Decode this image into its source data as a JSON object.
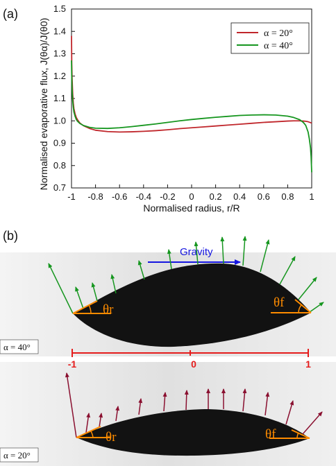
{
  "panel_a_label": "(a)",
  "panel_b_label": "(b)",
  "chart_data": {
    "type": "line",
    "xlabel": "Normalised radius, r/R",
    "ylabel": "Normalised evaporative flux, J(θα)/J(θ0)",
    "xlim": [
      -1,
      1
    ],
    "ylim": [
      0.7,
      1.5
    ],
    "x_ticks": [
      "-1",
      "-0.8",
      "-0.6",
      "-0.4",
      "-0.2",
      "0",
      "0.2",
      "0.4",
      "0.6",
      "0.8",
      "1"
    ],
    "y_ticks": [
      "0.7",
      "0.8",
      "0.9",
      "1.0",
      "1.1",
      "1.2",
      "1.3",
      "1.4",
      "1.5"
    ],
    "legend_position": "top-right",
    "grid": false,
    "series": [
      {
        "name": "α = 20°",
        "color": "#c0262b",
        "x": [
          -1.0,
          -0.998,
          -0.995,
          -0.99,
          -0.985,
          -0.98,
          -0.97,
          -0.96,
          -0.95,
          -0.93,
          -0.9,
          -0.85,
          -0.8,
          -0.7,
          -0.6,
          -0.5,
          -0.4,
          -0.3,
          -0.2,
          -0.1,
          0.0,
          0.1,
          0.2,
          0.3,
          0.4,
          0.5,
          0.6,
          0.7,
          0.8,
          0.85,
          0.9,
          0.93,
          0.95,
          0.97,
          0.98,
          0.99,
          0.995,
          1.0
        ],
        "y": [
          1.38,
          1.26,
          1.19,
          1.12,
          1.08,
          1.055,
          1.03,
          1.015,
          1.005,
          0.99,
          0.978,
          0.966,
          0.958,
          0.952,
          0.95,
          0.951,
          0.953,
          0.956,
          0.96,
          0.965,
          0.969,
          0.973,
          0.977,
          0.981,
          0.985,
          0.989,
          0.993,
          0.996,
          0.999,
          1.0,
          1.0,
          0.999,
          0.998,
          0.996,
          0.994,
          0.992,
          0.991,
          0.99
        ]
      },
      {
        "name": "α = 40°",
        "color": "#16961f",
        "x": [
          -1.0,
          -0.998,
          -0.995,
          -0.99,
          -0.985,
          -0.98,
          -0.97,
          -0.96,
          -0.95,
          -0.93,
          -0.9,
          -0.85,
          -0.8,
          -0.7,
          -0.6,
          -0.5,
          -0.4,
          -0.3,
          -0.2,
          -0.1,
          0.0,
          0.1,
          0.2,
          0.3,
          0.4,
          0.5,
          0.6,
          0.7,
          0.8,
          0.85,
          0.9,
          0.93,
          0.95,
          0.97,
          0.98,
          0.99,
          0.995,
          0.998,
          1.0
        ],
        "y": [
          1.27,
          1.2,
          1.14,
          1.09,
          1.06,
          1.04,
          1.02,
          1.006,
          0.998,
          0.988,
          0.979,
          0.971,
          0.967,
          0.966,
          0.969,
          0.974,
          0.98,
          0.986,
          0.993,
          1.0,
          1.006,
          1.011,
          1.016,
          1.02,
          1.024,
          1.026,
          1.027,
          1.026,
          1.021,
          1.015,
          1.005,
          0.993,
          0.98,
          0.95,
          0.92,
          0.88,
          0.84,
          0.8,
          0.77
        ]
      }
    ]
  },
  "photo": {
    "gravity_label": "Gravity",
    "top_label": "α = 40°",
    "bottom_label": "α = 20°",
    "theta_r": "θr",
    "theta_f": "θf",
    "scale_left": "-1",
    "scale_mid": "0",
    "scale_right": "1",
    "top_arrow_color": "#16961f",
    "bottom_arrow_color": "#8a1030",
    "scale_color": "#e51c1c",
    "gravity_color": "#1414e0",
    "angle_color": "#ff8c00"
  }
}
